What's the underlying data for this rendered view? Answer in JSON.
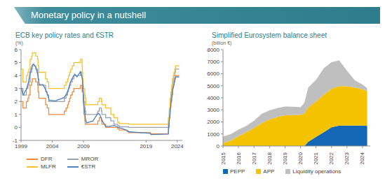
{
  "title": "Monetary policy in a nutshell",
  "chart_data": [
    {
      "type": "line",
      "title": "ECB key policy rates and €STR",
      "subtitle": "(%)",
      "xlim": [
        1999,
        2024.8
      ],
      "xticks": [
        1999,
        2004,
        2009,
        2019,
        2024
      ],
      "ylim": [
        -1,
        6
      ],
      "yticks": [
        -1,
        0,
        1,
        2,
        3,
        4,
        5,
        6
      ],
      "grid": false,
      "legend": "bottom",
      "series": [
        {
          "name": "DFR",
          "color": "#f08a3c",
          "line_style": "step",
          "x": [
            1999.0,
            1999.3,
            1999.85,
            2000.1,
            2000.25,
            2000.45,
            2000.7,
            2000.8,
            2001.35,
            2001.65,
            2001.72,
            2001.85,
            2002.93,
            2003.18,
            2003.43,
            2005.93,
            2006.2,
            2006.45,
            2006.6,
            2006.78,
            2006.95,
            2007.2,
            2007.45,
            2008.52,
            2008.77,
            2008.79,
            2008.86,
            2008.94,
            2009.05,
            2009.2,
            2009.27,
            2009.35,
            2011.28,
            2011.53,
            2011.86,
            2011.94,
            2012.53,
            2013.35,
            2013.86,
            2014.45,
            2014.7,
            2015.94,
            2016.2,
            2019.7,
            2022.57,
            2022.71,
            2022.84,
            2022.96,
            2023.1,
            2023.22,
            2023.35,
            2023.46,
            2023.58,
            2023.71,
            2024.3
          ],
          "values": [
            2.0,
            1.5,
            2.0,
            2.25,
            2.5,
            3.25,
            3.5,
            3.75,
            3.5,
            3.25,
            2.75,
            2.25,
            1.75,
            1.5,
            1.0,
            1.25,
            1.5,
            1.75,
            2.0,
            2.25,
            2.5,
            2.75,
            3.0,
            3.25,
            2.75,
            3.25,
            2.75,
            2.0,
            1.0,
            0.5,
            0.25,
            0.25,
            0.5,
            0.75,
            0.5,
            0.25,
            0.0,
            0.0,
            0.0,
            -0.1,
            -0.2,
            -0.3,
            -0.4,
            -0.5,
            0.0,
            0.75,
            1.5,
            2.0,
            2.5,
            3.0,
            3.25,
            3.5,
            3.75,
            4.0,
            4.0
          ]
        },
        {
          "name": "MROR",
          "color": "#9aa3ad",
          "line_style": "step",
          "x": [
            1999.0,
            1999.3,
            1999.85,
            2000.1,
            2000.25,
            2000.45,
            2000.7,
            2000.8,
            2001.35,
            2001.65,
            2001.72,
            2001.85,
            2002.93,
            2003.18,
            2003.43,
            2005.93,
            2006.2,
            2006.45,
            2006.6,
            2006.78,
            2006.95,
            2007.2,
            2007.45,
            2008.52,
            2008.77,
            2008.79,
            2008.86,
            2008.94,
            2009.05,
            2009.2,
            2009.27,
            2009.35,
            2011.28,
            2011.53,
            2011.86,
            2011.94,
            2012.53,
            2013.35,
            2013.86,
            2014.45,
            2014.7,
            2015.94,
            2016.2,
            2019.7,
            2022.57,
            2022.71,
            2022.84,
            2022.96,
            2023.1,
            2023.22,
            2023.35,
            2023.46,
            2023.58,
            2023.71,
            2024.3
          ],
          "values": [
            3.0,
            2.5,
            3.0,
            3.25,
            3.5,
            4.25,
            4.5,
            4.75,
            4.5,
            4.25,
            3.75,
            3.25,
            2.75,
            2.5,
            2.0,
            2.25,
            2.5,
            2.75,
            3.0,
            3.25,
            3.5,
            3.75,
            4.0,
            4.25,
            3.75,
            3.75,
            3.25,
            2.5,
            2.0,
            1.5,
            1.25,
            1.0,
            1.25,
            1.5,
            1.25,
            1.0,
            0.75,
            0.5,
            0.25,
            0.15,
            0.05,
            0.05,
            0.0,
            0.0,
            0.5,
            1.25,
            2.0,
            2.5,
            3.0,
            3.5,
            3.75,
            4.0,
            4.25,
            4.5,
            4.5
          ]
        },
        {
          "name": "MLFR",
          "color": "#f7c12b",
          "line_style": "step",
          "x": [
            1999.0,
            1999.3,
            1999.85,
            2000.1,
            2000.25,
            2000.45,
            2000.7,
            2000.8,
            2001.35,
            2001.65,
            2001.72,
            2001.85,
            2002.93,
            2003.18,
            2003.43,
            2005.93,
            2006.2,
            2006.45,
            2006.6,
            2006.78,
            2006.95,
            2007.2,
            2007.45,
            2008.52,
            2008.77,
            2008.79,
            2008.86,
            2008.94,
            2009.05,
            2009.2,
            2009.27,
            2009.35,
            2011.28,
            2011.53,
            2011.86,
            2011.94,
            2012.53,
            2013.35,
            2013.86,
            2014.45,
            2014.7,
            2015.94,
            2016.2,
            2019.7,
            2022.57,
            2022.71,
            2022.84,
            2022.96,
            2023.1,
            2023.22,
            2023.35,
            2023.46,
            2023.58,
            2023.71,
            2024.3
          ],
          "values": [
            4.5,
            3.5,
            4.0,
            4.25,
            4.5,
            5.25,
            5.5,
            5.75,
            5.5,
            5.25,
            4.75,
            4.25,
            3.75,
            3.5,
            3.0,
            3.25,
            3.5,
            3.75,
            4.0,
            4.25,
            4.5,
            4.75,
            5.0,
            5.25,
            4.75,
            4.25,
            3.75,
            3.0,
            3.0,
            2.5,
            2.25,
            1.75,
            2.0,
            2.25,
            2.0,
            1.75,
            1.5,
            1.0,
            0.75,
            0.4,
            0.3,
            0.3,
            0.25,
            0.25,
            0.75,
            1.5,
            2.25,
            2.75,
            3.25,
            3.75,
            4.0,
            4.25,
            4.5,
            4.75,
            4.75
          ]
        },
        {
          "name": "€STR",
          "color": "#4f81bd",
          "line_style": "solid",
          "x": [
            1999.0,
            1999.25,
            1999.35,
            1999.9,
            2000.2,
            2000.5,
            2000.8,
            2001.0,
            2001.4,
            2001.7,
            2001.9,
            2002.5,
            2002.95,
            2003.2,
            2003.5,
            2004.5,
            2005.9,
            2006.3,
            2006.6,
            2006.9,
            2007.3,
            2007.6,
            2007.95,
            2008.5,
            2008.8,
            2008.9,
            2009.0,
            2009.3,
            2009.5,
            2010.5,
            2010.9,
            2011.3,
            2011.6,
            2011.9,
            2012.5,
            2013.0,
            2013.9,
            2014.4,
            2014.7,
            2015.3,
            2015.95,
            2016.3,
            2019.7,
            2019.8,
            2022.55,
            2022.6,
            2022.75,
            2022.9,
            2023.0,
            2023.15,
            2023.25,
            2023.4,
            2023.5,
            2023.6,
            2023.75,
            2024.3
          ],
          "values": [
            3.1,
            2.6,
            2.5,
            3.0,
            3.5,
            4.3,
            4.8,
            4.9,
            4.6,
            4.0,
            3.3,
            3.3,
            2.9,
            2.6,
            2.1,
            2.05,
            2.3,
            2.6,
            3.0,
            3.5,
            3.9,
            4.1,
            3.9,
            4.3,
            3.8,
            3.1,
            1.8,
            0.7,
            0.35,
            0.5,
            0.8,
            1.1,
            1.0,
            0.6,
            0.1,
            0.07,
            0.15,
            0.05,
            -0.02,
            -0.1,
            -0.24,
            -0.34,
            -0.45,
            -0.55,
            -0.51,
            -0.1,
            0.66,
            1.4,
            1.9,
            2.4,
            2.9,
            3.15,
            3.4,
            3.65,
            3.9,
            3.9
          ]
        }
      ]
    },
    {
      "type": "area",
      "title": "Simplified Eurosystem balance sheet",
      "subtitle": "(billion €)",
      "stacked": true,
      "grid": false,
      "legend": "bottom",
      "x": [
        2015.0,
        2015.5,
        2016.0,
        2016.5,
        2017.0,
        2017.5,
        2018.0,
        2018.5,
        2019.0,
        2019.5,
        2020.0,
        2020.25,
        2020.5,
        2021.0,
        2021.5,
        2022.0,
        2022.5,
        2023.0,
        2023.5,
        2024.0,
        2024.3
      ],
      "xlim": [
        2015,
        2024.5
      ],
      "xticks": [
        2015,
        2016,
        2017,
        2018,
        2019,
        2020,
        2021,
        2022,
        2023,
        2024
      ],
      "ylim": [
        0,
        8000
      ],
      "yticks": [
        0,
        1000,
        2000,
        3000,
        4000,
        5000,
        6000,
        7000,
        8000
      ],
      "series": [
        {
          "name": "PEPP",
          "color": "#1467b4",
          "values": [
            0,
            0,
            0,
            0,
            0,
            0,
            0,
            0,
            0,
            0,
            0,
            0,
            350,
            750,
            1150,
            1550,
            1700,
            1700,
            1700,
            1690,
            1660
          ]
        },
        {
          "name": "APP",
          "color": "#f5c200",
          "values": [
            230,
            450,
            800,
            1150,
            1500,
            1900,
            2200,
            2400,
            2550,
            2560,
            2600,
            2700,
            2850,
            2950,
            3100,
            3200,
            3270,
            3250,
            3150,
            3000,
            2900
          ]
        },
        {
          "name": "Liquidity operations",
          "color": "#bfbfbf",
          "values": [
            550,
            530,
            560,
            520,
            600,
            770,
            760,
            740,
            720,
            700,
            620,
            900,
            1650,
            1800,
            2200,
            2200,
            2130,
            1300,
            600,
            410,
            250
          ]
        }
      ]
    }
  ]
}
